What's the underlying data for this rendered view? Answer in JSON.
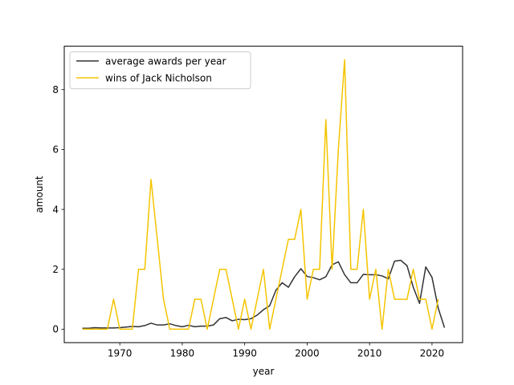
{
  "chart_data": {
    "type": "line",
    "title": "",
    "xlabel": "year",
    "ylabel": "amount",
    "xlim": [
      1961.1,
      2024.9
    ],
    "ylim": [
      -0.45,
      9.45
    ],
    "xticks": [
      1970,
      1980,
      1990,
      2000,
      2010,
      2020
    ],
    "yticks": [
      0,
      2,
      4,
      6,
      8
    ],
    "grid": false,
    "legend_position": "top-left",
    "series": [
      {
        "name": "average awards per year",
        "color": "#333333",
        "x": [
          1964,
          1965,
          1966,
          1967,
          1968,
          1969,
          1970,
          1971,
          1972,
          1973,
          1974,
          1975,
          1976,
          1977,
          1978,
          1979,
          1980,
          1981,
          1982,
          1983,
          1984,
          1985,
          1986,
          1987,
          1988,
          1989,
          1990,
          1991,
          1992,
          1993,
          1994,
          1995,
          1996,
          1997,
          1998,
          1999,
          2000,
          2001,
          2002,
          2003,
          2004,
          2005,
          2006,
          2007,
          2008,
          2009,
          2010,
          2011,
          2012,
          2013,
          2014,
          2015,
          2016,
          2017,
          2018,
          2019,
          2020,
          2021,
          2022
        ],
        "y": [
          0.03,
          0.03,
          0.05,
          0.04,
          0.04,
          0.04,
          0.05,
          0.07,
          0.09,
          0.08,
          0.12,
          0.2,
          0.14,
          0.14,
          0.18,
          0.12,
          0.08,
          0.13,
          0.08,
          0.1,
          0.1,
          0.14,
          0.35,
          0.39,
          0.28,
          0.33,
          0.32,
          0.35,
          0.47,
          0.65,
          0.78,
          1.3,
          1.55,
          1.4,
          1.75,
          2.02,
          1.76,
          1.72,
          1.65,
          1.75,
          2.15,
          2.25,
          1.82,
          1.55,
          1.55,
          1.83,
          1.82,
          1.82,
          1.78,
          1.68,
          2.27,
          2.3,
          2.12,
          1.4,
          0.86,
          2.08,
          1.73,
          0.7,
          0.05
        ]
      },
      {
        "name": "wins of Jack Nicholson",
        "color": "#f5c400",
        "x": [
          1964,
          1965,
          1966,
          1967,
          1968,
          1969,
          1970,
          1971,
          1972,
          1973,
          1974,
          1975,
          1976,
          1977,
          1978,
          1979,
          1980,
          1981,
          1982,
          1983,
          1984,
          1985,
          1986,
          1987,
          1988,
          1989,
          1990,
          1991,
          1992,
          1993,
          1994,
          1995,
          1996,
          1997,
          1998,
          1999,
          2000,
          2001,
          2002,
          2003,
          2004,
          2005,
          2006,
          2007,
          2008,
          2009,
          2010,
          2011,
          2012,
          2013,
          2014,
          2015,
          2016,
          2017,
          2018,
          2019,
          2020,
          2021
        ],
        "y": [
          0,
          0,
          0,
          0,
          0,
          1,
          0,
          0,
          0,
          2,
          2,
          5,
          3,
          1,
          0,
          0,
          0,
          0,
          1,
          1,
          0,
          1,
          2,
          2,
          1,
          0,
          1,
          0,
          1,
          2,
          0,
          1,
          2,
          3,
          3,
          4,
          1,
          2,
          2,
          7,
          2,
          6,
          9,
          2,
          2,
          4,
          1,
          2,
          0,
          2,
          1,
          1,
          1,
          2,
          1,
          1,
          0,
          1
        ]
      }
    ]
  }
}
